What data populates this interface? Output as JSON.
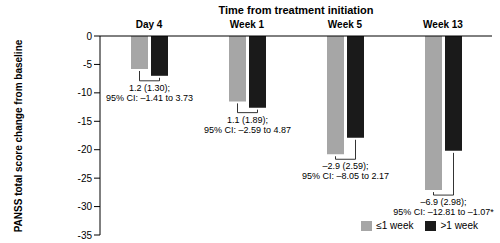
{
  "chart_data": {
    "type": "bar",
    "title": "Time from treatment initiation",
    "y_label": "PANSS total score change from baseline",
    "categories": [
      "Day 4",
      "Week 1",
      "Week 5",
      "Week 13"
    ],
    "series": [
      {
        "name": "≤1 week",
        "color": "#a6a6a6",
        "values": [
          -5.8,
          -11.5,
          -20.8,
          -27.1
        ]
      },
      {
        "name": ">1 week",
        "color": "#1a1a1a",
        "values": [
          -7.0,
          -12.6,
          -17.9,
          -20.2
        ]
      }
    ],
    "ylim": [
      -35,
      0
    ],
    "yticks": [
      0,
      -5,
      -10,
      -15,
      -20,
      -25,
      -30,
      -35
    ],
    "legend": "lower right",
    "grid": false,
    "annotations": [
      [
        "1.2 (1.30);",
        "95% CI: –1.41 to 3.73"
      ],
      [
        "1.1 (1.89);",
        "95% CI: –2.59 to 4.87"
      ],
      [
        "–2.9 (2.59);",
        "95% CI: –8.05 to 2.17"
      ],
      [
        "–6.9 (2.98);",
        "95% CI: –12.81 to –1.07*"
      ]
    ]
  }
}
